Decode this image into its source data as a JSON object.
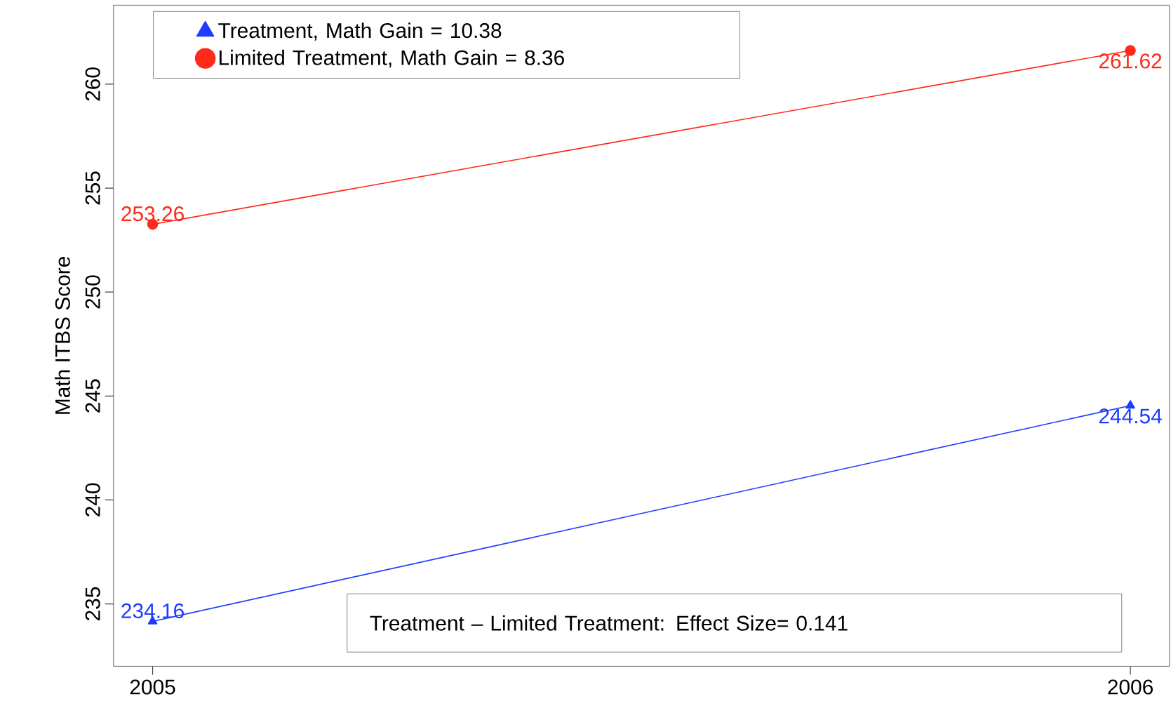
{
  "chart_data": {
    "type": "line",
    "ylabel": "Math ITBS Score",
    "categories": [
      "2005",
      "2006"
    ],
    "series": [
      {
        "name": "Treatment, Math Gain = 10.38",
        "color": "#1f3cff",
        "marker": "triangle",
        "values": [
          234.16,
          244.54
        ]
      },
      {
        "name": "Limited Treatment, Math Gain = 8.36",
        "color": "#ff2a1a",
        "marker": "circle",
        "values": [
          253.26,
          261.62
        ]
      }
    ],
    "ylim": [
      232,
      263.8
    ],
    "yticks": [
      235,
      240,
      245,
      250,
      255,
      260
    ],
    "data_labels": true,
    "legend": "top left",
    "line_style": "solid",
    "annotations": [
      "Treatment – Limited Treatment: Effect Size= 0.141"
    ]
  }
}
